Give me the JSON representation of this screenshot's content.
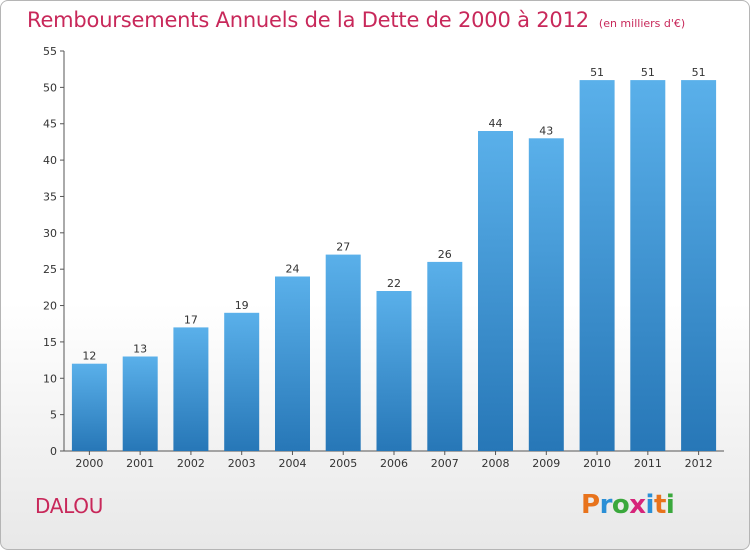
{
  "header": {
    "title": "Remboursements Annuels de la Dette de 2000 à 2012",
    "subtitle": "(en milliers d'€)"
  },
  "footer": {
    "place": "DALOU",
    "logo": "Proxiti"
  },
  "colors": {
    "title": "#c8285a",
    "bar_top": "#5ab0ea",
    "bar_bottom": "#2777b7",
    "logo": [
      "#e8731c",
      "#2a8fd6",
      "#3aa83c",
      "#d6247a",
      "#2a8fd6",
      "#e8731c",
      "#3aa83c"
    ]
  },
  "chart_data": {
    "type": "bar",
    "title": "Remboursements Annuels de la Dette de 2000 à 2012",
    "subtitle": "(en milliers d'€)",
    "xlabel": "",
    "ylabel": "",
    "categories": [
      "2000",
      "2001",
      "2002",
      "2003",
      "2004",
      "2005",
      "2006",
      "2007",
      "2008",
      "2009",
      "2010",
      "2011",
      "2012"
    ],
    "values": [
      12,
      13,
      17,
      19,
      24,
      27,
      22,
      26,
      44,
      43,
      51,
      51,
      51
    ],
    "ylim": [
      0,
      55
    ],
    "yticks": [
      0,
      5,
      10,
      15,
      20,
      25,
      30,
      35,
      40,
      45,
      50,
      55
    ],
    "grid": false,
    "data_labels": true
  }
}
